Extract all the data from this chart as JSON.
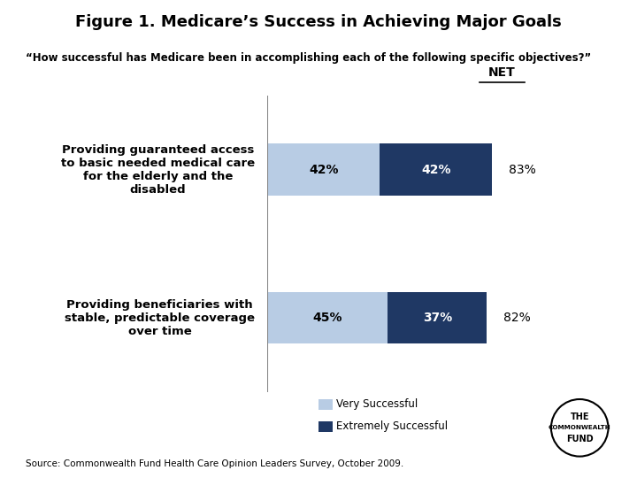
{
  "title": "Figure 1. Medicare’s Success in Achieving Major Goals",
  "subtitle": "“How successful has Medicare been in accomplishing each of the following specific objectives?”",
  "categories": [
    "Providing guaranteed access\nto basic needed medical care\nfor the elderly and the\ndisabled",
    "Providing beneficiaries with\nstable, predictable coverage\nover time"
  ],
  "very_successful": [
    42,
    45
  ],
  "extremely_successful": [
    42,
    37
  ],
  "net": [
    "83%",
    "82%"
  ],
  "color_very": "#b8cce4",
  "color_extremely": "#1f3864",
  "source": "Source: Commonwealth Fund Health Care Opinion Leaders Survey, October 2009.",
  "legend_very": "Very Successful",
  "legend_extremely": "Extremely Successful",
  "net_label": "NET",
  "background": "#ffffff"
}
